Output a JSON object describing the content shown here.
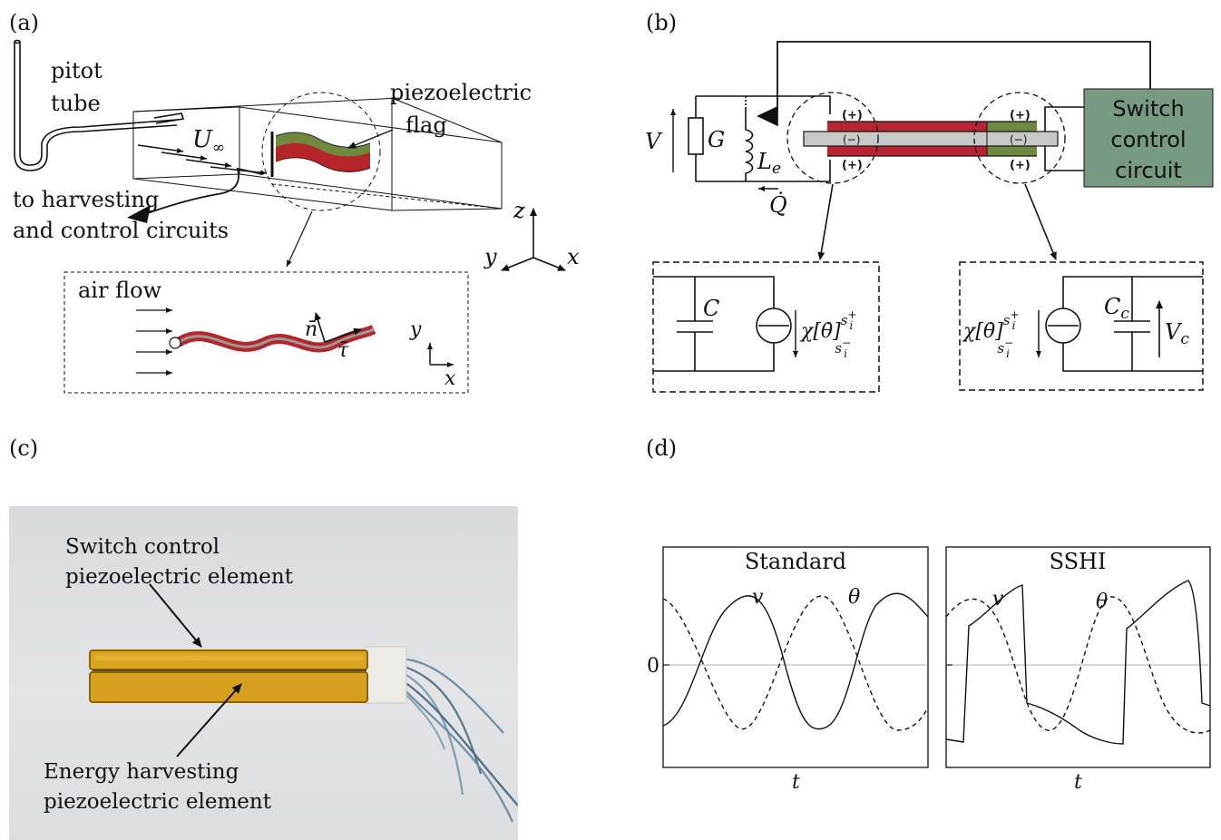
{
  "panels": {
    "a": {
      "tag": "(a)",
      "pitot_line1": "pitot",
      "pitot_line2": "tube",
      "flow_symbol": "U",
      "flow_subscript": "∞",
      "flag_line1": "piezoelectric",
      "flag_line2": "flag",
      "circuits_line1": "to harvesting",
      "circuits_line2": "and control circuits",
      "axis_z": "z",
      "axis_y": "y",
      "axis_x": "x",
      "inset_airflow": "air flow",
      "inset_n": "n̄",
      "inset_tau": "τ̄",
      "inset_y": "y",
      "inset_x": "x"
    },
    "b": {
      "tag": "(b)",
      "V": "V",
      "G": "G",
      "Le_main": "L",
      "Le_sub": "e",
      "Q": "Q̇",
      "plus": "(+)",
      "minus": "(−)",
      "switch_line1": "Switch",
      "switch_line2": "control",
      "switch_line3": "circuit",
      "C": "C",
      "Cc_main": "C",
      "Cc_sub": "c",
      "Vc_main": "V",
      "Vc_sub": "c",
      "chi": "χ[θ̇]",
      "sup": "s",
      "sup_plus": "+",
      "sup_minus": "−",
      "sup_i": "i"
    },
    "c": {
      "tag": "(c)",
      "switch_line1": "Switch control",
      "switch_line2": "piezoelectric element",
      "energy_line1": "Energy harvesting",
      "energy_line2": "piezoelectric element"
    },
    "d": {
      "tag": "(d)",
      "left_title": "Standard",
      "right_title": "SSHI",
      "zero": "0",
      "v_label": "v",
      "theta_label": "θ",
      "t_label": "t"
    }
  },
  "colors": {
    "flag_red": "#b5262a",
    "flag_green": "#6f8a3f",
    "piezo_red": "#b82532",
    "piezo_green": "#6d8a40",
    "core_gray": "#c8c8c8",
    "switch_box": "#779a83",
    "gold": "#d9a51f"
  }
}
